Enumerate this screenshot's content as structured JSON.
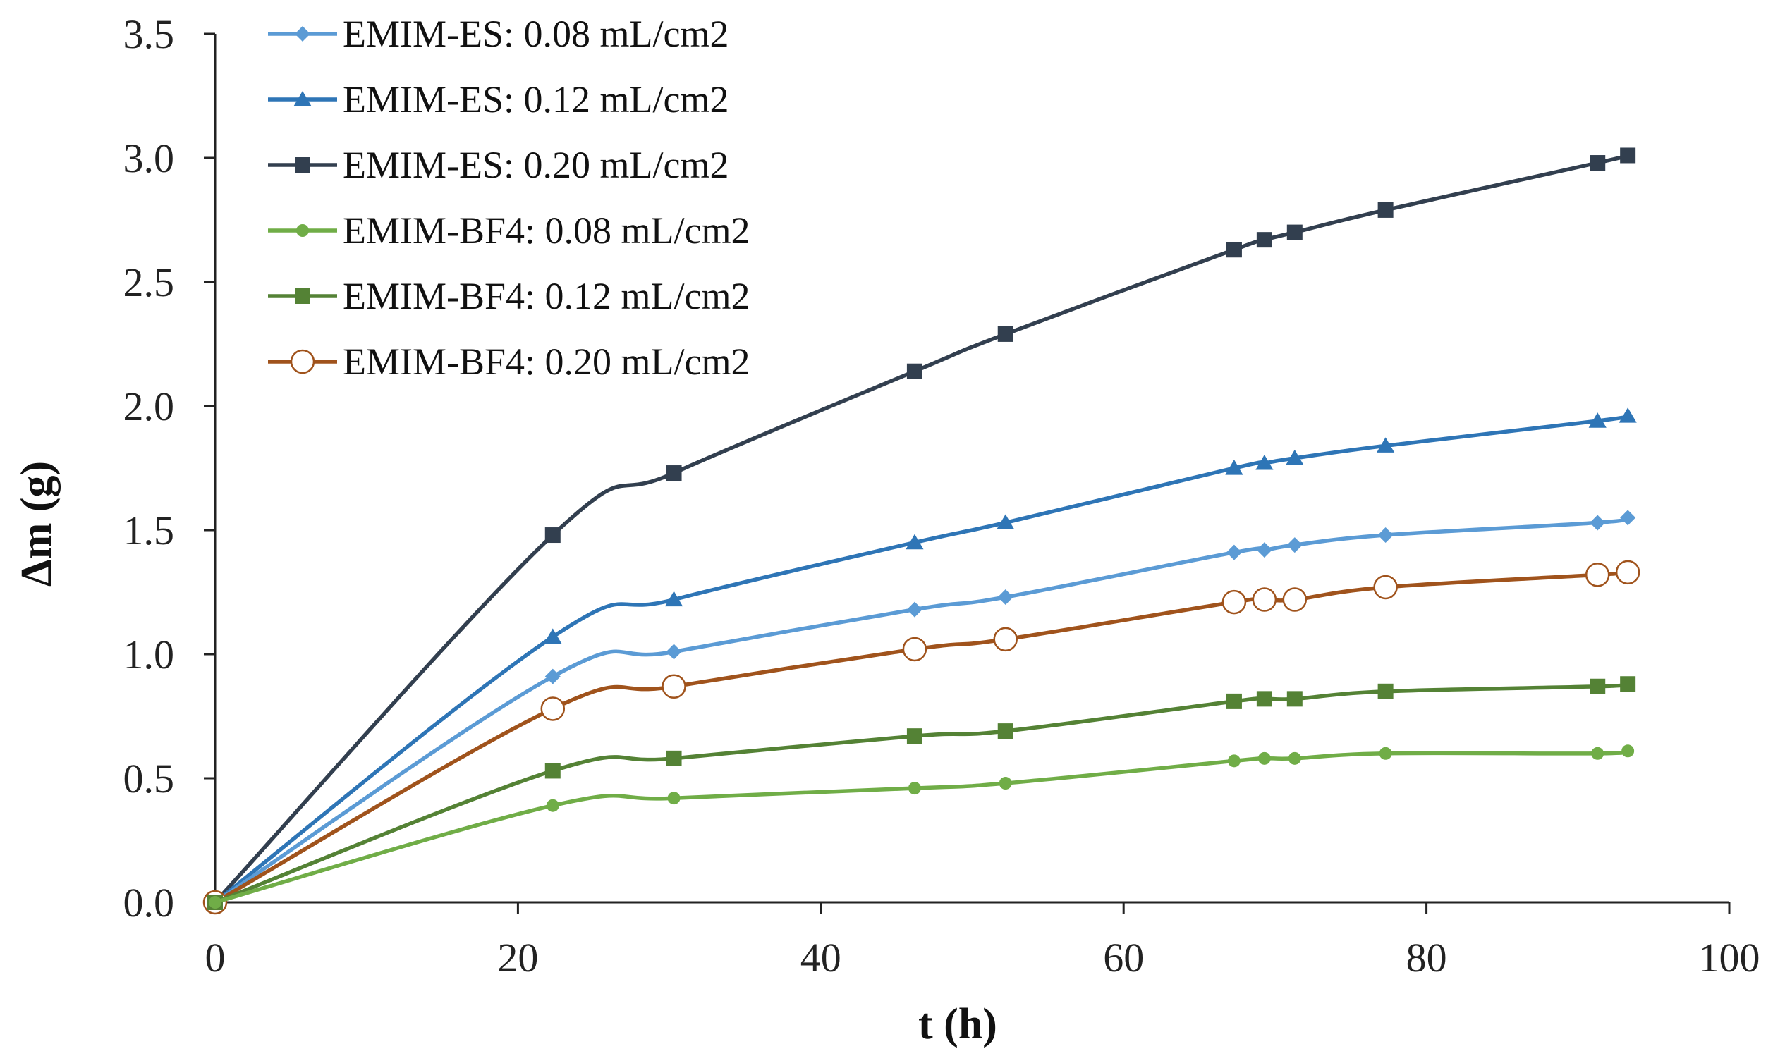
{
  "chart_data": {
    "type": "line",
    "title": "",
    "xlabel": "t (h)",
    "ylabel": "Δm (g)",
    "xlim": [
      0,
      100
    ],
    "ylim": [
      0,
      3.5
    ],
    "xticks": [
      0,
      20,
      40,
      60,
      80,
      100
    ],
    "yticks": [
      0.0,
      0.5,
      1.0,
      1.5,
      2.0,
      2.5,
      3.0,
      3.5
    ],
    "xtick_labels": [
      "0",
      "20",
      "40",
      "60",
      "80",
      "100"
    ],
    "ytick_labels": [
      "0.0",
      "0.5",
      "1.0",
      "1.5",
      "2.0",
      "2.5",
      "3.0",
      "3.5"
    ],
    "grid": false,
    "legend_position": "top-left",
    "x": [
      0,
      22.3,
      30.3,
      46.2,
      52.2,
      67.3,
      69.3,
      71.3,
      77.3,
      91.3,
      93.3
    ],
    "series": [
      {
        "name": "EMIM-ES: 0.08 mL/cm2",
        "color": "#5b9bd5",
        "marker": "diamond",
        "values": [
          0,
          0.91,
          1.01,
          1.18,
          1.23,
          1.41,
          1.42,
          1.44,
          1.48,
          1.53,
          1.55
        ]
      },
      {
        "name": "EMIM-ES: 0.12 mL/cm2",
        "color": "#2e75b6",
        "marker": "triangle",
        "values": [
          0,
          1.07,
          1.22,
          1.45,
          1.53,
          1.75,
          1.77,
          1.79,
          1.84,
          1.94,
          1.96
        ]
      },
      {
        "name": "EMIM-ES: 0.20 mL/cm2",
        "color": "#323f4f",
        "marker": "square",
        "values": [
          0,
          1.48,
          1.73,
          2.14,
          2.29,
          2.63,
          2.67,
          2.7,
          2.79,
          2.98,
          3.01
        ]
      },
      {
        "name": "EMIM-BF4: 0.08 mL/cm2",
        "color": "#70ad47",
        "marker": "circle",
        "values": [
          0,
          0.39,
          0.42,
          0.46,
          0.48,
          0.57,
          0.58,
          0.58,
          0.6,
          0.6,
          0.61
        ]
      },
      {
        "name": "EMIM-BF4: 0.12 mL/cm2",
        "color": "#548235",
        "marker": "square",
        "values": [
          0,
          0.53,
          0.58,
          0.67,
          0.69,
          0.81,
          0.82,
          0.82,
          0.85,
          0.87,
          0.88
        ]
      },
      {
        "name": "EMIM-BF4: 0.20 mL/cm2",
        "color": "#a0531c",
        "marker": "open-circle",
        "values": [
          0,
          0.78,
          0.87,
          1.02,
          1.06,
          1.21,
          1.22,
          1.22,
          1.27,
          1.32,
          1.33
        ]
      }
    ]
  }
}
